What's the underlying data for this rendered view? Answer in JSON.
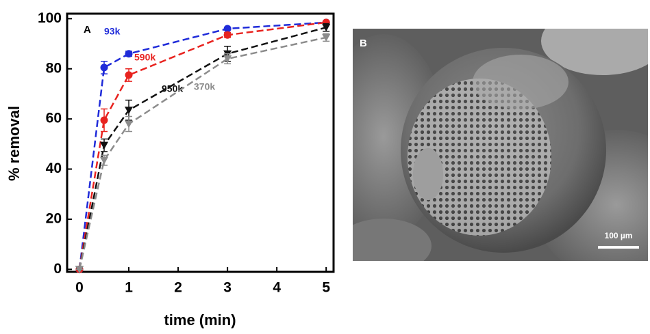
{
  "chart_data": {
    "type": "line",
    "panel_label": "A",
    "x_label": "time (min)",
    "y_label": "% removal",
    "x": [
      0,
      0.5,
      1,
      3,
      5
    ],
    "xlim": [
      -0.25,
      5.15
    ],
    "xticks": [
      0,
      1,
      2,
      3,
      4,
      5
    ],
    "ylim": [
      -1,
      102
    ],
    "yticks": [
      0,
      20,
      40,
      60,
      80,
      100
    ],
    "series": [
      {
        "name": "93k",
        "color": "#1f2bd9",
        "marker": "circle",
        "values": [
          0,
          80.5,
          86,
          96,
          98.5
        ],
        "errors": [
          0,
          2.5,
          1,
          0.5,
          0.5
        ]
      },
      {
        "name": "590k",
        "color": "#e8231f",
        "marker": "circle",
        "values": [
          0,
          59.5,
          77.5,
          93.5,
          98.5
        ],
        "errors": [
          0,
          4.5,
          2.5,
          1,
          0.5
        ]
      },
      {
        "name": "950k",
        "color": "#111111",
        "marker": "triangle-down",
        "values": [
          0,
          49.5,
          63.5,
          86,
          96.5
        ],
        "errors": [
          0,
          2.5,
          4,
          3,
          1.5
        ]
      },
      {
        "name": "370k",
        "color": "#8c8c8c",
        "marker": "triangle-down",
        "values": [
          0,
          43.5,
          58,
          84,
          92.5
        ],
        "errors": [
          0,
          2,
          3,
          2,
          1.5
        ]
      }
    ]
  },
  "image": {
    "panel_label": "B",
    "scale_bar": "100 µm"
  }
}
